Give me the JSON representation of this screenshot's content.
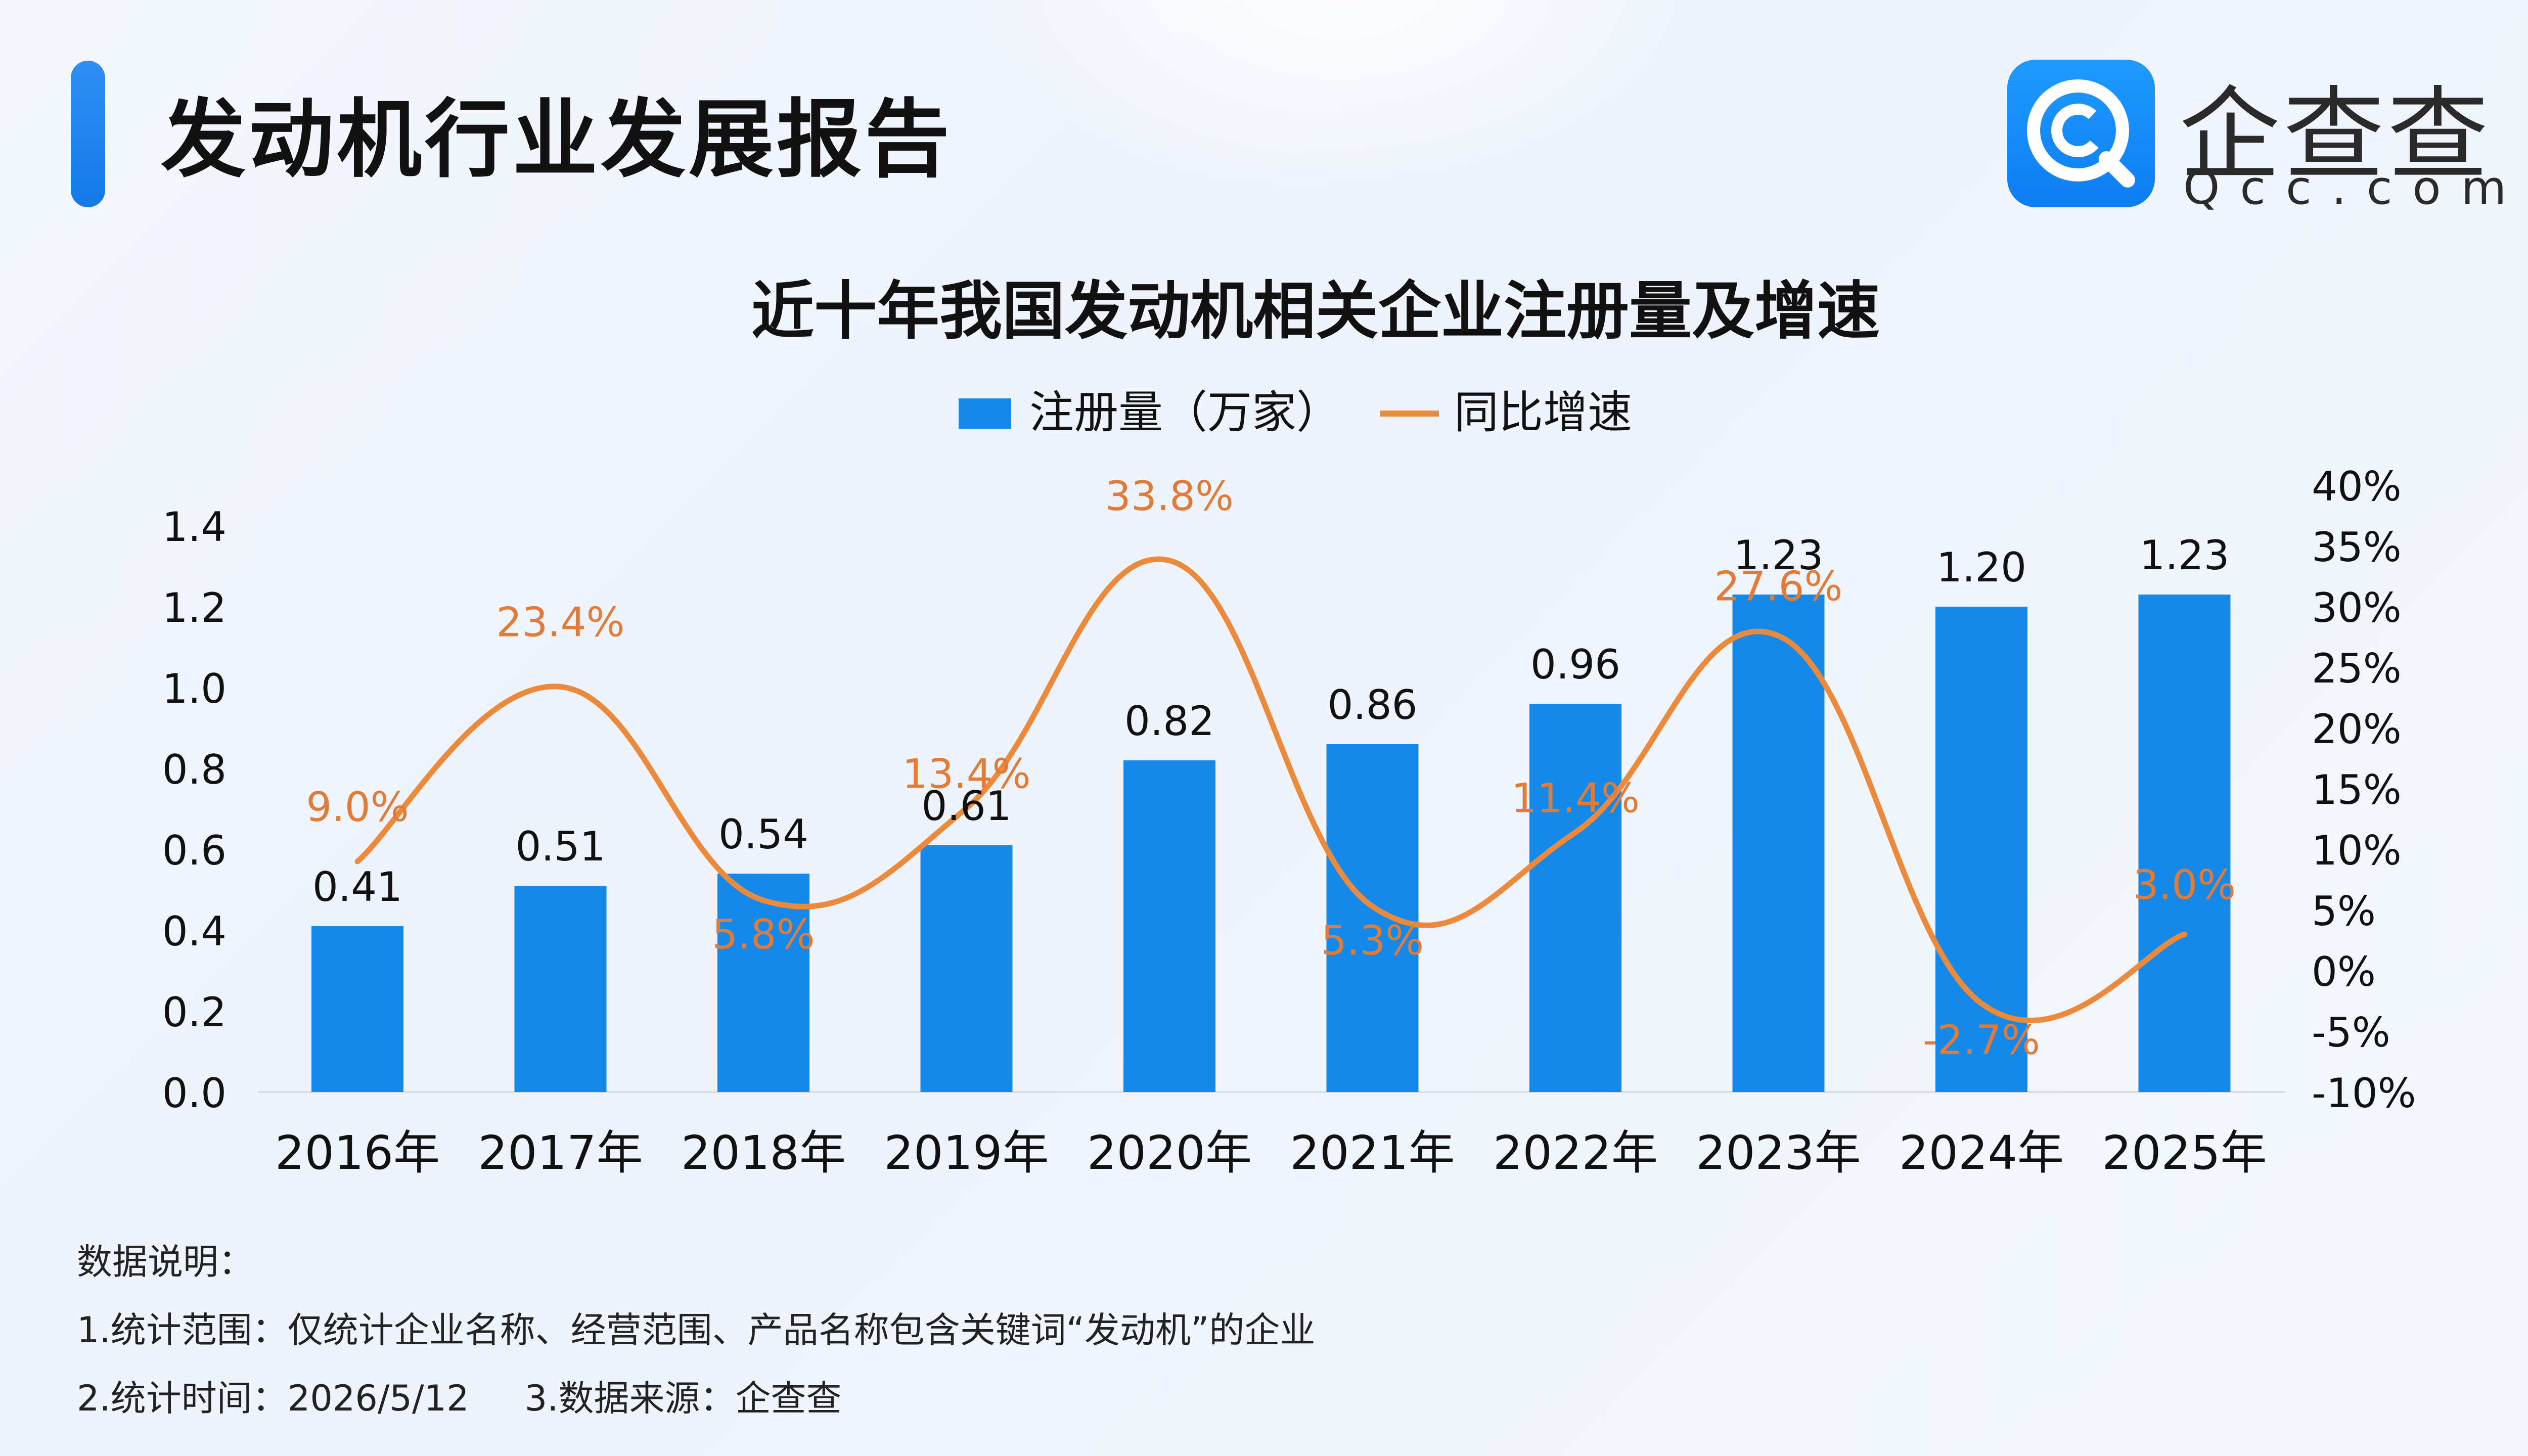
{
  "header": {
    "title": "发动机行业发展报告"
  },
  "logo": {
    "name": "企查查",
    "domain": "Qcc.com",
    "icon": "qcc-logo-icon"
  },
  "notes": {
    "heading": "数据说明：",
    "line1": "1.统计范围：仅统计企业名称、经营范围、产品名称包含关键词“发动机”的企业",
    "time": "2.统计时间：2026/5/12",
    "source": "3.数据来源：企查查"
  },
  "colors": {
    "bar": "#1589e9",
    "line": "#ec8a3c",
    "line_label": "#e07b38",
    "text": "#111111"
  },
  "chart_data": {
    "type": "bar",
    "title": "近十年我国发动机相关企业注册量及增速",
    "categories": [
      "2016年",
      "2017年",
      "2018年",
      "2019年",
      "2020年",
      "2021年",
      "2022年",
      "2023年",
      "2024年",
      "2025年"
    ],
    "series": [
      {
        "name": "注册量（万家）",
        "type": "bar",
        "axis": "left",
        "values": [
          0.41,
          0.51,
          0.54,
          0.61,
          0.82,
          0.86,
          0.96,
          1.23,
          1.2,
          1.23
        ],
        "labels": [
          "0.41",
          "0.51",
          "0.54",
          "0.61",
          "0.82",
          "0.86",
          "0.96",
          "1.23",
          "1.20",
          "1.23"
        ]
      },
      {
        "name": "同比增速",
        "type": "line",
        "smooth": true,
        "axis": "right",
        "values": [
          9.0,
          23.4,
          5.8,
          13.4,
          33.8,
          5.3,
          11.4,
          27.6,
          -2.7,
          3.0
        ],
        "labels": [
          "9.0%",
          "23.4%",
          "5.8%",
          "13.4%",
          "33.8%",
          "5.3%",
          "11.4%",
          "27.6%",
          "-2.7%",
          "3.0%"
        ]
      }
    ],
    "y_left": {
      "ylim": [
        0,
        1.4
      ],
      "ticks": [
        "0.0",
        "0.2",
        "0.4",
        "0.6",
        "0.8",
        "1.0",
        "1.2",
        "1.4"
      ]
    },
    "y_right": {
      "ylim": [
        -10,
        40
      ],
      "ticks": [
        "-10%",
        "-5%",
        "0%",
        "5%",
        "10%",
        "15%",
        "20%",
        "25%",
        "30%",
        "35%",
        "40%"
      ]
    },
    "legend": "top-center",
    "grid": false
  }
}
